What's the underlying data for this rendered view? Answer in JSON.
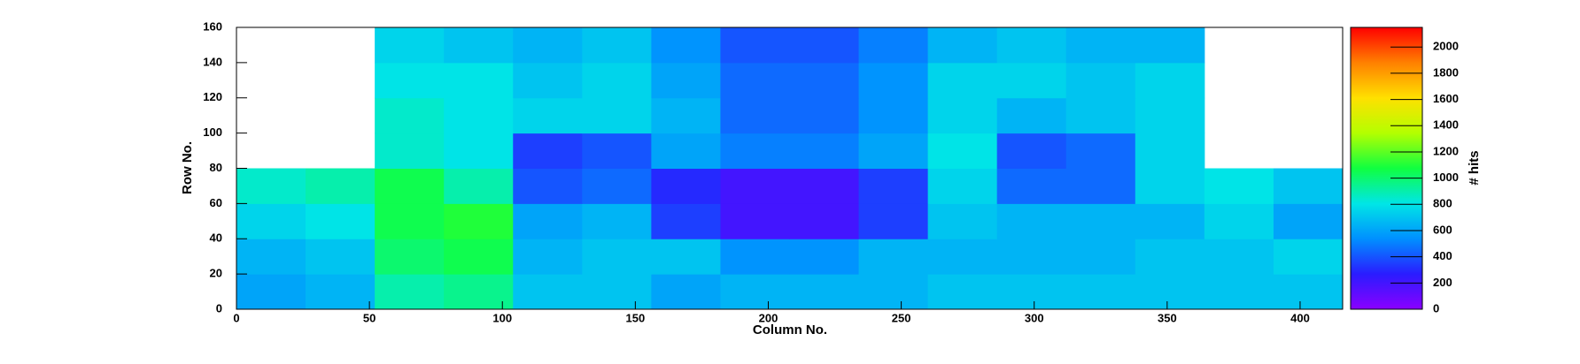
{
  "chart_data": {
    "type": "heatmap",
    "x_label": "Column No.",
    "y_label": "Row No.",
    "z_label": "# hits",
    "x_bins": [
      0,
      26,
      52,
      78,
      104,
      130,
      156,
      182,
      208,
      234,
      260,
      286,
      312,
      338,
      364,
      390,
      416
    ],
    "y_bins": [
      0,
      20,
      40,
      60,
      80,
      100,
      120,
      140,
      160
    ],
    "z": [
      [
        600,
        650,
        900,
        950,
        700,
        700,
        600,
        650,
        650,
        650,
        700,
        700,
        700,
        700,
        700,
        700
      ],
      [
        650,
        700,
        1000,
        1050,
        650,
        700,
        700,
        550,
        550,
        650,
        650,
        650,
        650,
        700,
        700,
        750
      ],
      [
        750,
        800,
        1050,
        1100,
        600,
        650,
        350,
        200,
        200,
        350,
        700,
        650,
        650,
        650,
        750,
        600
      ],
      [
        850,
        900,
        1050,
        900,
        400,
        450,
        300,
        200,
        200,
        350,
        750,
        450,
        450,
        750,
        800,
        700
      ],
      [
        null,
        null,
        850,
        800,
        350,
        400,
        600,
        500,
        500,
        600,
        800,
        400,
        450,
        750,
        null,
        null
      ],
      [
        null,
        null,
        850,
        800,
        750,
        750,
        650,
        450,
        450,
        550,
        750,
        650,
        700,
        750,
        null,
        null
      ],
      [
        null,
        null,
        800,
        800,
        700,
        750,
        600,
        450,
        450,
        550,
        750,
        750,
        700,
        750,
        null,
        null
      ],
      [
        null,
        null,
        750,
        700,
        650,
        700,
        550,
        400,
        400,
        500,
        650,
        700,
        650,
        650,
        null,
        null
      ]
    ],
    "xlim": [
      0,
      416
    ],
    "ylim": [
      0,
      160
    ],
    "zlim": [
      0,
      2150
    ],
    "xticks": [
      0,
      50,
      100,
      150,
      200,
      250,
      300,
      350,
      400
    ],
    "yticks": [
      0,
      20,
      40,
      60,
      80,
      100,
      120,
      140,
      160
    ],
    "zticks": [
      0,
      200,
      400,
      600,
      800,
      1000,
      1200,
      1400,
      1600,
      1800,
      2000
    ],
    "colorscale": [
      "#8a00ff",
      "#2a1cff",
      "#0090ff",
      "#00e6e6",
      "#10ff40",
      "#b4ff00",
      "#ffe000",
      "#ff8000",
      "#ff0000"
    ]
  }
}
